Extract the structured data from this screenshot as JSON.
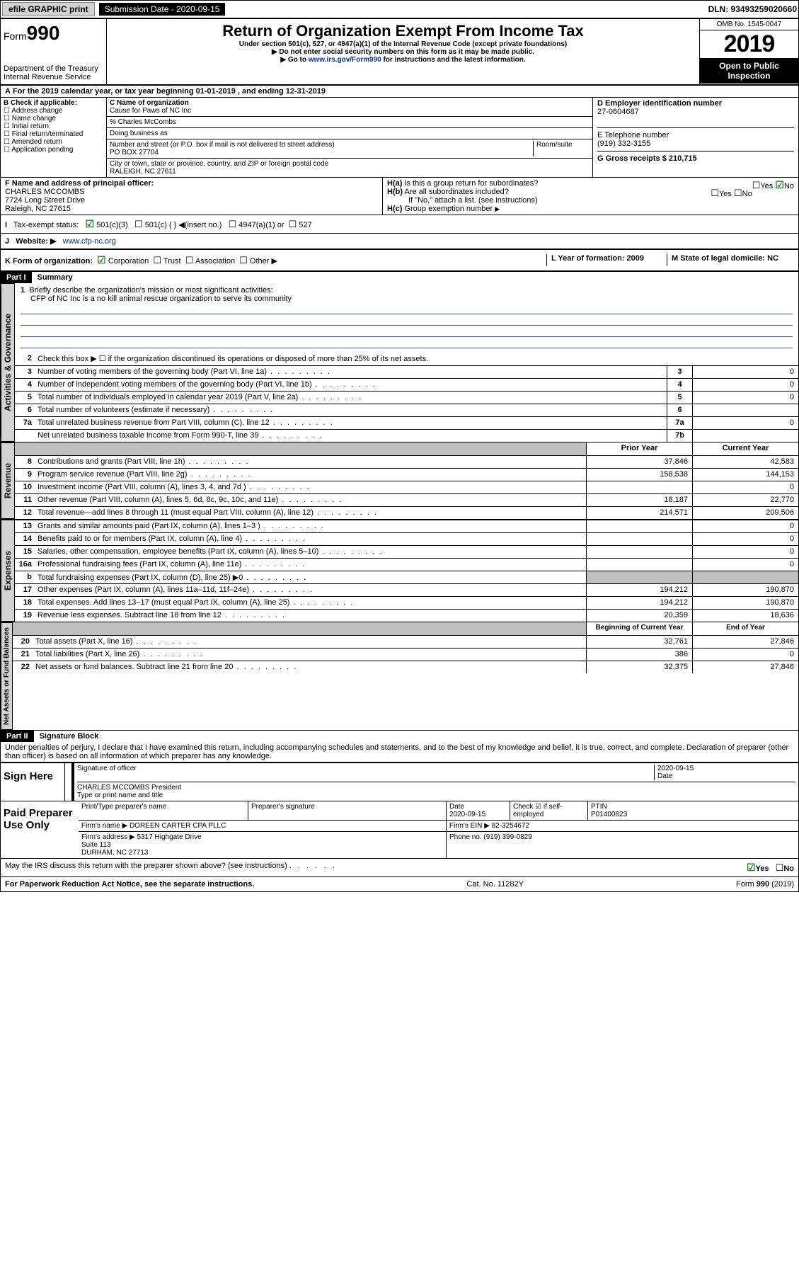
{
  "topbar": {
    "efile": "efile GRAPHIC print",
    "subLabel": "Submission Date - 2020-09-15",
    "dln": "DLN: 93493259020660"
  },
  "header": {
    "formWord": "Form",
    "formNum": "990",
    "dept": "Department of the Treasury\nInternal Revenue Service",
    "title": "Return of Organization Exempt From Income Tax",
    "sub1": "Under section 501(c), 527, or 4947(a)(1) of the Internal Revenue Code (except private foundations)",
    "sub2": "Do not enter social security numbers on this form as it may be made public.",
    "sub3a": "Go to ",
    "sub3link": "www.irs.gov/Form990",
    "sub3b": " for instructions and the latest information.",
    "omb": "OMB No. 1545-0047",
    "year": "2019",
    "open": "Open to Public Inspection"
  },
  "periodA": "For the 2019 calendar year, or tax year beginning 01-01-2019   , and ending 12-31-2019",
  "boxB": {
    "hdr": "B Check if applicable:",
    "items": [
      "Address change",
      "Name change",
      "Initial return",
      "Final return/terminated",
      "Amended return",
      "Application pending"
    ]
  },
  "boxC": {
    "nameLbl": "C Name of organization",
    "name": "Cause for Paws of NC Inc",
    "care": "% Charles McCombs",
    "dba": "Doing business as",
    "addrLbl": "Number and street (or P.O. box if mail is not delivered to street address)",
    "addr": "PO BOX 27704",
    "room": "Room/suite",
    "cityLbl": "City or town, state or province, country, and ZIP or foreign postal code",
    "city": "RALEIGH, NC  27611"
  },
  "boxD": {
    "lbl": "D Employer identification number",
    "val": "27-0604687"
  },
  "boxE": {
    "lbl": "E Telephone number",
    "val": "(919) 332-3155"
  },
  "boxG": {
    "lbl": "G Gross receipts $ 210,715"
  },
  "boxF": {
    "lbl": "F  Name and address of principal officer:",
    "name": "CHARLES MCCOMBS",
    "addr1": "7724 Long Street Drive",
    "addr2": "Raleigh, NC  27615"
  },
  "boxH": {
    "a": "Is this a group return for subordinates?",
    "aYes": "Yes",
    "aNo": "No",
    "b": "Are all subordinates included?",
    "bNote": "If \"No,\" attach a list. (see instructions)",
    "c": "Group exemption number"
  },
  "taxStatus": {
    "lbl": "Tax-exempt status:",
    "c3": "501(c)(3)",
    "c": "501(c) (  ) ◀(insert no.)",
    "a1": "4947(a)(1) or",
    "s527": "527"
  },
  "websiteLbl": "Website: ▶",
  "website": "www.cfp-nc.org",
  "kLine": {
    "lbl": "K Form of organization:",
    "corp": "Corporation",
    "trust": "Trust",
    "assoc": "Association",
    "other": "Other ▶",
    "lLbl": "L Year of formation: 2009",
    "mLbl": "M State of legal domicile: NC"
  },
  "part1": {
    "hdr": "Part I",
    "title": "Summary",
    "q1a": "Briefly describe the organization's mission or most significant activities:",
    "q1b": "CFP of NC Inc is a no kill animal rescue organization to serve its community",
    "q2": "Check this box ▶ ☐  if the organization discontinued its operations or disposed of more than 25% of its net assets.",
    "lines_gov": [
      {
        "n": "3",
        "d": "Number of voting members of the governing body (Part VI, line 1a)",
        "box": "3",
        "v": "0"
      },
      {
        "n": "4",
        "d": "Number of independent voting members of the governing body (Part VI, line 1b)",
        "box": "4",
        "v": "0"
      },
      {
        "n": "5",
        "d": "Total number of individuals employed in calendar year 2019 (Part V, line 2a)",
        "box": "5",
        "v": "0"
      },
      {
        "n": "6",
        "d": "Total number of volunteers (estimate if necessary)",
        "box": "6",
        "v": ""
      },
      {
        "n": "7a",
        "d": "Total unrelated business revenue from Part VIII, column (C), line 12",
        "box": "7a",
        "v": "0"
      },
      {
        "n": "",
        "d": "Net unrelated business taxable income from Form 990-T, line 39",
        "box": "7b",
        "v": ""
      }
    ],
    "colPrior": "Prior Year",
    "colCurr": "Current Year",
    "lines_rev": [
      {
        "n": "8",
        "d": "Contributions and grants (Part VIII, line 1h)",
        "p": "37,846",
        "c": "42,583"
      },
      {
        "n": "9",
        "d": "Program service revenue (Part VIII, line 2g)",
        "p": "158,538",
        "c": "144,153"
      },
      {
        "n": "10",
        "d": "Investment income (Part VIII, column (A), lines 3, 4, and 7d )",
        "p": "",
        "c": "0"
      },
      {
        "n": "11",
        "d": "Other revenue (Part VIII, column (A), lines 5, 6d, 8c, 9c, 10c, and 11e)",
        "p": "18,187",
        "c": "22,770"
      },
      {
        "n": "12",
        "d": "Total revenue—add lines 8 through 11 (must equal Part VIII, column (A), line 12)",
        "p": "214,571",
        "c": "209,506"
      }
    ],
    "lines_exp": [
      {
        "n": "13",
        "d": "Grants and similar amounts paid (Part IX, column (A), lines 1–3 )",
        "p": "",
        "c": "0"
      },
      {
        "n": "14",
        "d": "Benefits paid to or for members (Part IX, column (A), line 4)",
        "p": "",
        "c": "0"
      },
      {
        "n": "15",
        "d": "Salaries, other compensation, employee benefits (Part IX, column (A), lines 5–10)",
        "p": "",
        "c": "0"
      },
      {
        "n": "16a",
        "d": "Professional fundraising fees (Part IX, column (A), line 11e)",
        "p": "",
        "c": "0"
      },
      {
        "n": "b",
        "d": "Total fundraising expenses (Part IX, column (D), line 25) ▶0",
        "p": "shade",
        "c": "shade"
      },
      {
        "n": "17",
        "d": "Other expenses (Part IX, column (A), lines 11a–11d, 11f–24e)",
        "p": "194,212",
        "c": "190,870"
      },
      {
        "n": "18",
        "d": "Total expenses. Add lines 13–17 (must equal Part IX, column (A), line 25)",
        "p": "194,212",
        "c": "190,870"
      },
      {
        "n": "19",
        "d": "Revenue less expenses. Subtract line 18 from line 12",
        "p": "20,359",
        "c": "18,636"
      }
    ],
    "colBeg": "Beginning of Current Year",
    "colEnd": "End of Year",
    "lines_net": [
      {
        "n": "20",
        "d": "Total assets (Part X, line 16)",
        "p": "32,761",
        "c": "27,846"
      },
      {
        "n": "21",
        "d": "Total liabilities (Part X, line 26)",
        "p": "386",
        "c": "0"
      },
      {
        "n": "22",
        "d": "Net assets or fund balances. Subtract line 21 from line 20",
        "p": "32,375",
        "c": "27,846"
      }
    ],
    "side_gov": "Activities & Governance",
    "side_rev": "Revenue",
    "side_exp": "Expenses",
    "side_net": "Net Assets or Fund Balances"
  },
  "part2": {
    "hdr": "Part II",
    "title": "Signature Block",
    "decl": "Under penalties of perjury, I declare that I have examined this return, including accompanying schedules and statements, and to the best of my knowledge and belief, it is true, correct, and complete. Declaration of preparer (other than officer) is based on all information of which preparer has any knowledge."
  },
  "sign": {
    "here": "Sign Here",
    "sigOff": "Signature of officer",
    "date": "2020-09-15",
    "dateLbl": "Date",
    "name": "CHARLES MCCOMBS President",
    "nameLbl": "Type or print name and title"
  },
  "paid": {
    "lbl": "Paid Preparer Use Only",
    "h1": "Print/Type preparer's name",
    "h2": "Preparer's signature",
    "h3": "Date",
    "h3v": "2020-09-15",
    "h4": "Check ☑ if self-employed",
    "h5": "PTIN",
    "h5v": "P01400623",
    "firmLbl": "Firm's name  ▶",
    "firm": "DOREEN CARTER CPA PLLC",
    "einLbl": "Firm's EIN ▶ 82-3254672",
    "addrLbl": "Firm's address ▶",
    "addr": "5317 Highgate Drive\nSuite 113\nDURHAM, NC  27713",
    "phone": "Phone no. (919) 399-0829"
  },
  "discuss": "May the IRS discuss this return with the preparer shown above? (see instructions)",
  "discussYes": "Yes",
  "discussNo": "No",
  "footer": {
    "pra": "For Paperwork Reduction Act Notice, see the separate instructions.",
    "cat": "Cat. No. 11282Y",
    "form": "Form 990 (2019)"
  }
}
